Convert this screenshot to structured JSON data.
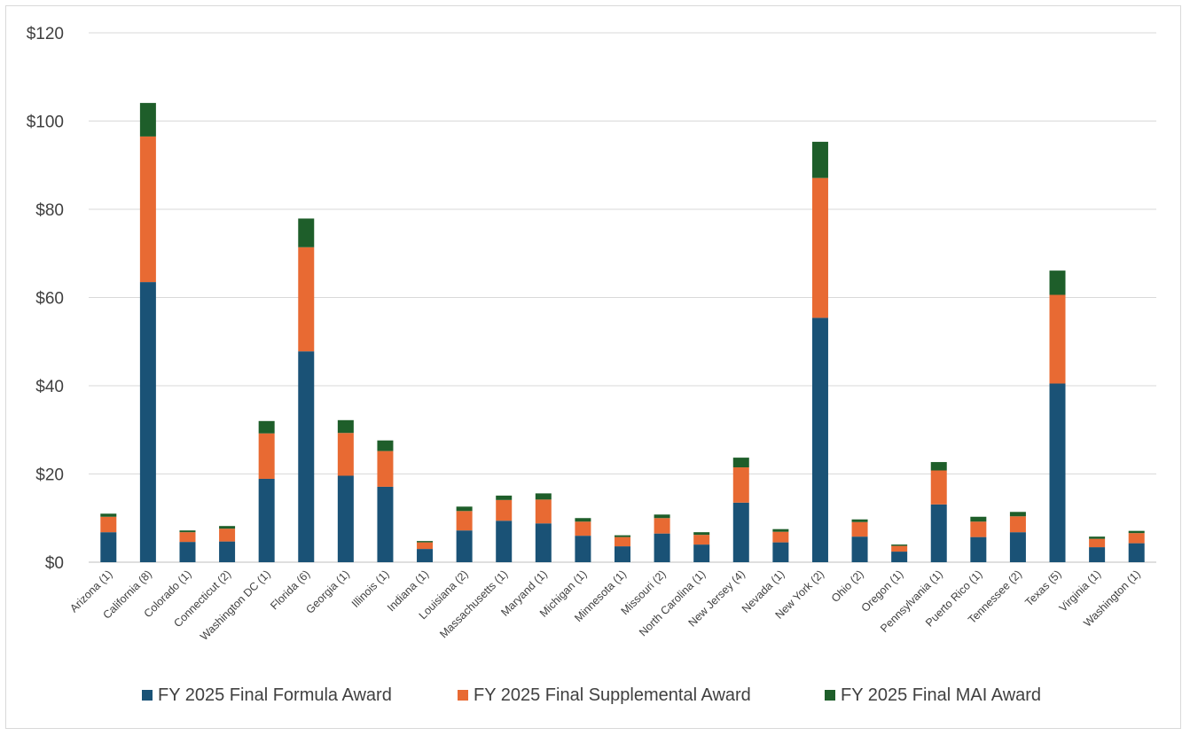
{
  "chart_data": {
    "type": "bar",
    "stacked": true,
    "categories": [
      "Arizona (1)",
      "California (8)",
      "Colorado (1)",
      "Connecticut (2)",
      "Washington DC (1)",
      "Florida (6)",
      "Georgia (1)",
      "Illinois (1)",
      "Indiana (1)",
      "Louisiana (2)",
      "Massachusetts (1)",
      "Maryand (1)",
      "Michigan (1)",
      "Minnesota (1)",
      "Missouri (2)",
      "North Carolina (1)",
      "New Jersey (4)",
      "Nevada (1)",
      "New York (2)",
      "Ohio (2)",
      "Oregon (1)",
      "Pennsylvania (1)",
      "Puerto Rico (1)",
      "Tennessee (2)",
      "Texas (5)",
      "Virginia (1)",
      "Washington (1)"
    ],
    "series": [
      {
        "name": "FY 2025 Final Formula Award",
        "color": "#1a5276",
        "values": [
          6.8,
          63.5,
          4.6,
          4.7,
          18.9,
          47.8,
          19.6,
          17.1,
          3.0,
          7.2,
          9.4,
          8.8,
          6.0,
          3.6,
          6.5,
          4.0,
          13.5,
          4.5,
          55.4,
          5.8,
          2.4,
          13.1,
          5.7,
          6.8,
          40.5,
          3.4,
          4.3
        ]
      },
      {
        "name": "FY 2025 Final Supplemental Award",
        "color": "#e86a33",
        "values": [
          3.5,
          33.0,
          2.2,
          2.9,
          10.3,
          23.6,
          9.7,
          8.1,
          1.5,
          4.4,
          4.7,
          5.4,
          3.2,
          2.1,
          3.5,
          2.2,
          8.0,
          2.4,
          31.7,
          3.3,
          1.3,
          7.7,
          3.5,
          3.6,
          20.1,
          1.9,
          2.3
        ]
      },
      {
        "name": "FY 2025 Final MAI Award",
        "color": "#1e5e2a",
        "values": [
          0.7,
          7.6,
          0.4,
          0.6,
          2.8,
          6.5,
          2.9,
          2.4,
          0.3,
          1.0,
          1.0,
          1.4,
          0.8,
          0.4,
          0.8,
          0.6,
          2.2,
          0.6,
          8.2,
          0.6,
          0.3,
          1.9,
          1.1,
          1.0,
          5.5,
          0.5,
          0.5
        ]
      }
    ],
    "y_ticks": [
      "$0",
      "$20",
      "$40",
      "$60",
      "$80",
      "$100",
      "$120"
    ],
    "ylim": [
      0,
      120
    ],
    "grid": true,
    "legend_position": "bottom"
  }
}
